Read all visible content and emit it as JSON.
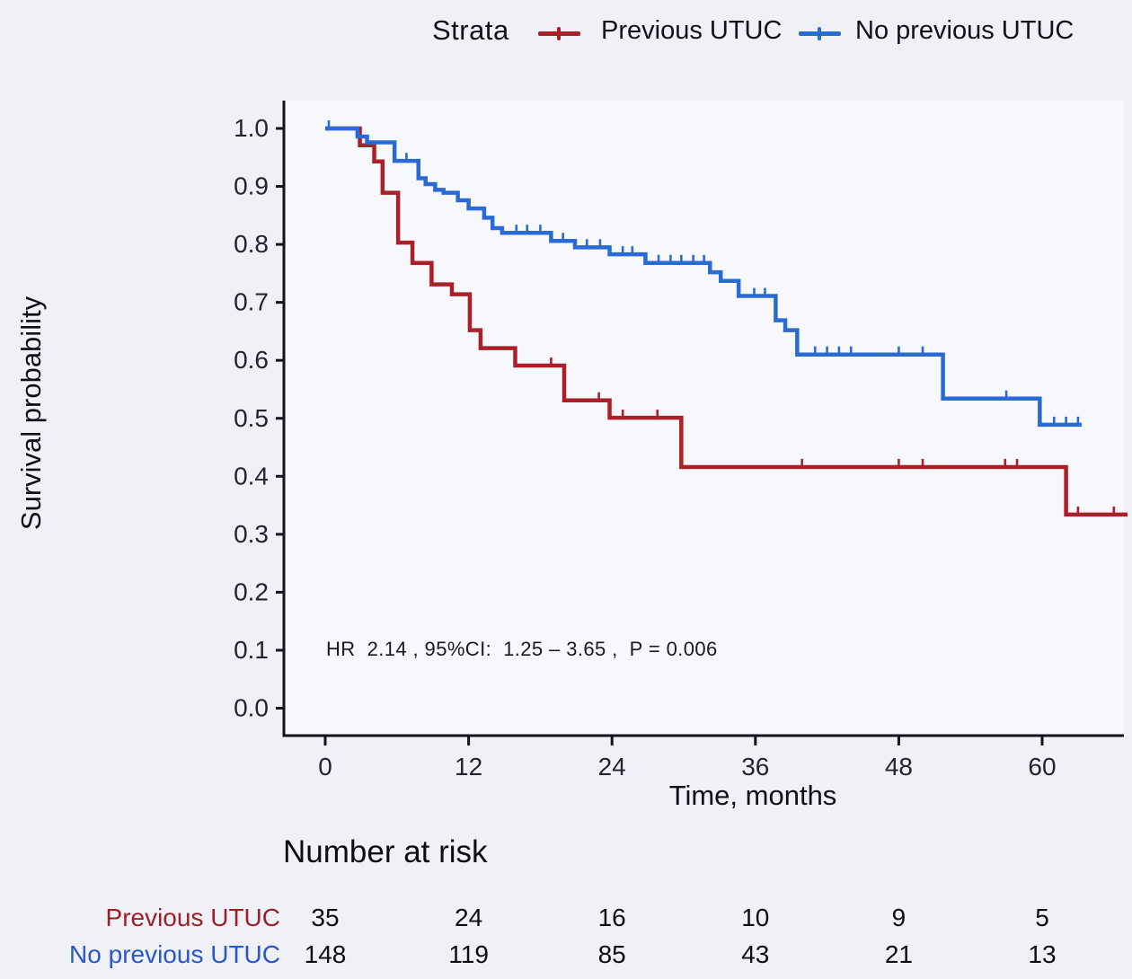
{
  "figure": {
    "background": "#eff1f7",
    "panel_background": "#f7f8fc",
    "axis_line_color": "#17101f",
    "tick_label_color": "#2a2034",
    "title_color": "#120d1a"
  },
  "legend": {
    "title": "Strata",
    "items": [
      {
        "label": "Previous UTUC",
        "color": "#ab2028"
      },
      {
        "label": "No previous UTUC",
        "color": "#2a6ad4"
      }
    ]
  },
  "axes": {
    "y_title": "Survival probability",
    "x_title": "Time, months"
  },
  "annotation": {
    "text": "HR  2.14 , 95%CI:  1.25 – 3.65 ,  P = 0.006"
  },
  "chart_data": {
    "type": "line",
    "subtype": "kaplan-meier-step-survival",
    "title": "Strata",
    "xlabel": "Time, months",
    "ylabel": "Survival probability",
    "xlim": [
      0,
      67.5
    ],
    "ylim": [
      0.0,
      1.0
    ],
    "x_ticks": [
      0,
      12,
      24,
      36,
      48,
      60
    ],
    "y_ticks": [
      "1.0",
      "0.9",
      "0.8",
      "0.7",
      "0.6",
      "0.5",
      "0.4",
      "0.3",
      "0.2",
      "0.1",
      "0.0"
    ],
    "grid": false,
    "legend_position": "top",
    "series": [
      {
        "name": "Previous UTUC",
        "color": "#ab2028",
        "steps": [
          [
            0,
            1.0
          ],
          [
            2.9,
            0.971
          ],
          [
            4.1,
            0.943
          ],
          [
            4.8,
            0.889
          ],
          [
            6.1,
            0.803
          ],
          [
            7.3,
            0.768
          ],
          [
            8.9,
            0.731
          ],
          [
            10.6,
            0.714
          ],
          [
            12.1,
            0.652
          ],
          [
            13.0,
            0.621
          ],
          [
            15.9,
            0.591
          ],
          [
            20.0,
            0.531
          ],
          [
            23.8,
            0.501
          ],
          [
            29.8,
            0.416
          ],
          [
            62.0,
            0.334
          ]
        ],
        "end_time": 67.2,
        "censor_times": [
          18.9,
          22.9,
          24.9,
          27.8,
          39.9,
          48.0,
          50.0,
          56.9,
          57.9,
          63.0,
          66.0
        ]
      },
      {
        "name": "No previous UTUC",
        "color": "#2a6ad4",
        "steps": [
          [
            0,
            1.0
          ],
          [
            2.7,
            0.986
          ],
          [
            3.5,
            0.976
          ],
          [
            5.8,
            0.944
          ],
          [
            7.8,
            0.914
          ],
          [
            8.4,
            0.904
          ],
          [
            9.2,
            0.894
          ],
          [
            9.9,
            0.889
          ],
          [
            11.1,
            0.876
          ],
          [
            12.0,
            0.862
          ],
          [
            13.3,
            0.846
          ],
          [
            14.0,
            0.828
          ],
          [
            14.8,
            0.82
          ],
          [
            18.9,
            0.806
          ],
          [
            20.9,
            0.795
          ],
          [
            23.8,
            0.783
          ],
          [
            26.8,
            0.768
          ],
          [
            32.2,
            0.752
          ],
          [
            33.1,
            0.737
          ],
          [
            34.6,
            0.711
          ],
          [
            37.7,
            0.669
          ],
          [
            38.5,
            0.652
          ],
          [
            39.5,
            0.61
          ],
          [
            51.7,
            0.534
          ],
          [
            59.8,
            0.489
          ]
        ],
        "end_time": 63.3,
        "censor_times": [
          0.3,
          6.8,
          16.0,
          16.9,
          18.0,
          19.9,
          21.9,
          23.0,
          24.9,
          25.7,
          27.9,
          28.9,
          29.8,
          30.8,
          31.7,
          35.9,
          36.8,
          41.0,
          42.0,
          43.0,
          44.0,
          48.0,
          50.0,
          57.0,
          61.0,
          62.0,
          63.0
        ]
      }
    ],
    "annotation": "HR  2.14 , 95%CI:  1.25 – 3.65 ,  P = 0.006"
  },
  "risk_table": {
    "title": "Number at risk",
    "time_points": [
      0,
      12,
      24,
      36,
      48,
      60
    ],
    "rows": [
      {
        "label": "Previous UTUC",
        "color": "#9c2127",
        "counts": [
          35,
          24,
          16,
          10,
          9,
          5
        ]
      },
      {
        "label": "No previous UTUC",
        "color": "#2957c9",
        "counts": [
          148,
          119,
          85,
          43,
          21,
          13
        ]
      }
    ]
  }
}
